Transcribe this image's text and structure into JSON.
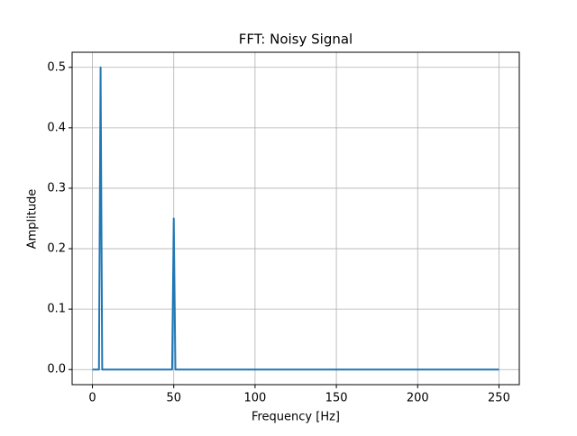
{
  "chart_data": {
    "type": "line",
    "title": "FFT: Noisy Signal",
    "xlabel": "Frequency [Hz]",
    "ylabel": "Amplitude",
    "x": [
      0,
      4,
      5,
      6,
      49,
      50,
      51,
      250
    ],
    "series": [
      {
        "name": "FFT",
        "color": "#1f77b4",
        "values": [
          0,
          0,
          0.5,
          0,
          0,
          0.25,
          0,
          0
        ]
      }
    ],
    "xlim": [
      -12.5,
      262.5
    ],
    "xticks": [
      0,
      50,
      100,
      150,
      200,
      250
    ],
    "ylim": [
      -0.025,
      0.525
    ],
    "yticks": [
      {
        "value": 0,
        "label": "0.0"
      },
      0.1,
      0.2,
      0.3,
      0.4,
      0.5
    ],
    "grid": true
  }
}
